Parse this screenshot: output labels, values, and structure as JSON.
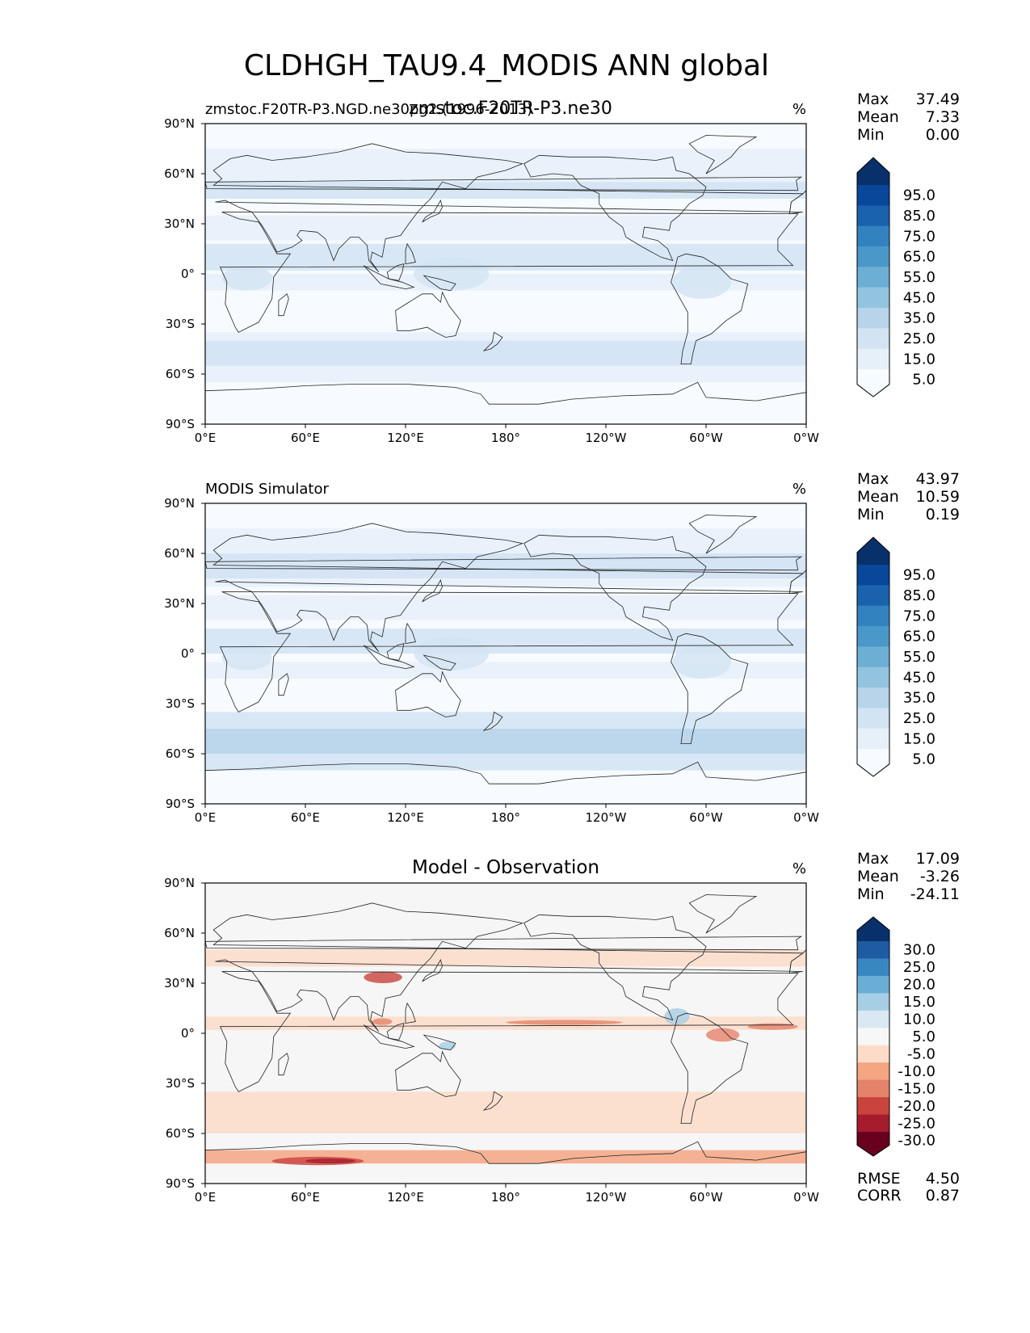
{
  "figure": {
    "title": "CLDHGH_TAU9.4_MODIS ANN global"
  },
  "chart_data": [
    {
      "type": "heatmap",
      "panel": "test",
      "title_left": "zmstoc.F20TR-P3.NGD.ne30pg2.(1996-2013)",
      "title_center": "zmstoc.F20TR-P3.ne30",
      "units": "%",
      "xticks": [
        "0°E",
        "60°E",
        "120°E",
        "180°",
        "120°W",
        "60°W",
        "0°W"
      ],
      "yticks": [
        "90°N",
        "60°N",
        "30°N",
        "0°",
        "30°S",
        "60°S",
        "90°S"
      ],
      "stats": [
        {
          "label": "Max",
          "value": "37.49"
        },
        {
          "label": "Mean",
          "value": "7.33"
        },
        {
          "label": "Min",
          "value": "0.00"
        }
      ],
      "colorbar": {
        "labels": [
          "95.0",
          "85.0",
          "75.0",
          "65.0",
          "55.0",
          "45.0",
          "35.0",
          "25.0",
          "15.0",
          "5.0"
        ],
        "colors": [
          "#08306b",
          "#08479a",
          "#1a62ad",
          "#3282bf",
          "#4a98c9",
          "#6daed5",
          "#93c4df",
          "#b7d4ea",
          "#d2e3f3",
          "#e6f0f9",
          "#f7fbff"
        ]
      }
    },
    {
      "type": "heatmap",
      "panel": "reference",
      "title_left": "MODIS Simulator",
      "title_center": "",
      "units": "%",
      "xticks": [
        "0°E",
        "60°E",
        "120°E",
        "180°",
        "120°W",
        "60°W",
        "0°W"
      ],
      "yticks": [
        "90°N",
        "60°N",
        "30°N",
        "0°",
        "30°S",
        "60°S",
        "90°S"
      ],
      "stats": [
        {
          "label": "Max",
          "value": "43.97"
        },
        {
          "label": "Mean",
          "value": "10.59"
        },
        {
          "label": "Min",
          "value": "0.19"
        }
      ],
      "colorbar": {
        "labels": [
          "95.0",
          "85.0",
          "75.0",
          "65.0",
          "55.0",
          "45.0",
          "35.0",
          "25.0",
          "15.0",
          "5.0"
        ],
        "colors": [
          "#08306b",
          "#08479a",
          "#1a62ad",
          "#3282bf",
          "#4a98c9",
          "#6daed5",
          "#93c4df",
          "#b7d4ea",
          "#d2e3f3",
          "#e6f0f9",
          "#f7fbff"
        ]
      }
    },
    {
      "type": "heatmap",
      "panel": "difference",
      "title_left": "",
      "title_center": "Model - Observation",
      "units": "%",
      "xticks": [
        "0°E",
        "60°E",
        "120°E",
        "180°",
        "120°W",
        "60°W",
        "0°W"
      ],
      "yticks": [
        "90°N",
        "60°N",
        "30°N",
        "0°",
        "30°S",
        "60°S",
        "90°S"
      ],
      "stats": [
        {
          "label": "Max",
          "value": "17.09"
        },
        {
          "label": "Mean",
          "value": "-3.26"
        },
        {
          "label": "Min",
          "value": "-24.11"
        }
      ],
      "colorbar": {
        "labels": [
          "30.0",
          "25.0",
          "20.0",
          "15.0",
          "10.0",
          "5.0",
          "-5.0",
          "-10.0",
          "-15.0",
          "-20.0",
          "-25.0",
          "-30.0"
        ],
        "colors": [
          "#08306b",
          "#1f5ba3",
          "#3987c0",
          "#6aaed6",
          "#a6cee4",
          "#d9e8f2",
          "#f7f7f7",
          "#fcdcc9",
          "#f4a582",
          "#e5836a",
          "#c9443d",
          "#a51d2d",
          "#67001f"
        ]
      },
      "metrics": [
        {
          "label": "RMSE",
          "value": "4.50"
        },
        {
          "label": "CORR",
          "value": "0.87"
        }
      ]
    }
  ]
}
